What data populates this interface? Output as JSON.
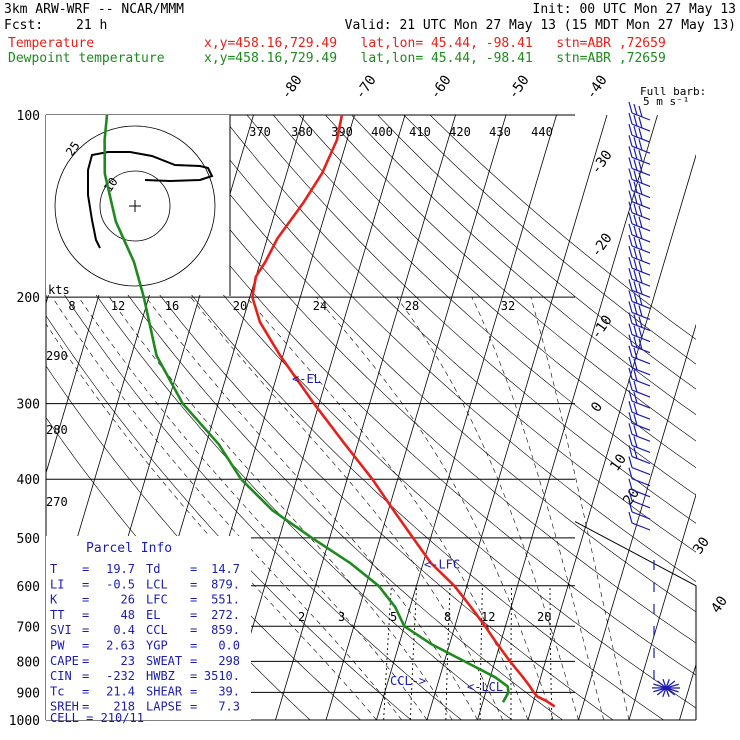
{
  "header": {
    "model": "3km ARW-WRF -- NCAR/MMM",
    "init": "Init: 00 UTC Mon 27 May 13",
    "fcst_label": "Fcst:",
    "fcst_value": "21 h",
    "valid": "Valid: 21 UTC Mon 27 May 13 (15 MDT Mon 27 May 13)",
    "temp_label": "Temperature",
    "temp_info": "x,y=458.16,729.49   lat,lon= 45.44, -98.41   stn=ABR ,72659",
    "dew_label": "Dewpoint temperature",
    "dew_info": "x,y=458.16,729.49   lat,lon= 45.44, -98.41   stn=ABR ,72659"
  },
  "colors": {
    "temperature": "#e8201a",
    "dewpoint": "#1e8a1e",
    "wind": "#1c1cb0",
    "grid": "#000000",
    "dry_adiabat": "#000000",
    "moist_adiabat": "#000000",
    "mixing_ratio": "#000000",
    "parcel_text": "#1c1cb0"
  },
  "wind_legend": {
    "title": "Full barb:",
    "value": "5 m s⁻¹"
  },
  "chart_data": {
    "type": "line",
    "title": "",
    "pressure_levels": [
      100,
      200,
      300,
      400,
      500,
      600,
      700,
      800,
      900,
      1000
    ],
    "pressure_labels": [
      "100",
      "200",
      "300",
      "400",
      "500",
      "600",
      "700",
      "800",
      "900",
      "1000"
    ],
    "isotherm_labels": [
      "-80",
      "-70",
      "-60",
      "-50",
      "-40",
      "-30",
      "-20",
      "-10",
      "0",
      "10",
      "20",
      "30",
      "40"
    ],
    "mixing_ratio_labels": [
      "2",
      "3",
      "5",
      "8",
      "12",
      "20"
    ],
    "theta_labels_left": [
      "290",
      "280",
      "270"
    ],
    "series": [
      {
        "name": "Temperature",
        "key": "temperature",
        "points": [
          [
            950,
            24.5
          ],
          [
            930,
            22.5
          ],
          [
            915,
            20.5
          ],
          [
            900,
            19.5
          ],
          [
            880,
            18.4
          ],
          [
            850,
            16.5
          ],
          [
            800,
            13.0
          ],
          [
            750,
            9.5
          ],
          [
            700,
            6.0
          ],
          [
            650,
            2.0
          ],
          [
            600,
            -2.5
          ],
          [
            550,
            -8.5
          ],
          [
            500,
            -13.5
          ],
          [
            450,
            -19.0
          ],
          [
            400,
            -25.0
          ],
          [
            350,
            -32.5
          ],
          [
            300,
            -41.0
          ],
          [
            250,
            -50.5
          ],
          [
            220,
            -56.5
          ],
          [
            200,
            -59.5
          ],
          [
            185,
            -60.0
          ],
          [
            175,
            -59.0
          ],
          [
            160,
            -58.0
          ],
          [
            140,
            -55.0
          ],
          [
            125,
            -53.0
          ],
          [
            110,
            -52.0
          ],
          [
            100,
            -52.5
          ]
        ]
      },
      {
        "name": "Dewpoint temperature",
        "key": "dewpoint",
        "points": [
          [
            935,
            14.0
          ],
          [
            900,
            14.5
          ],
          [
            880,
            14.0
          ],
          [
            850,
            11.0
          ],
          [
            800,
            4.0
          ],
          [
            750,
            -3.5
          ],
          [
            700,
            -10.0
          ],
          [
            650,
            -13.0
          ],
          [
            600,
            -17.5
          ],
          [
            550,
            -24.5
          ],
          [
            500,
            -33.5
          ],
          [
            450,
            -43.0
          ],
          [
            400,
            -51.0
          ],
          [
            350,
            -57.5
          ],
          [
            300,
            -67.0
          ],
          [
            250,
            -75.0
          ],
          [
            200,
            -81.0
          ],
          [
            175,
            -85.0
          ],
          [
            150,
            -91.0
          ],
          [
            125,
            -96.0
          ],
          [
            110,
            -98.0
          ],
          [
            100,
            -99.0
          ]
        ]
      }
    ],
    "annotations": [
      {
        "label": "<-EL",
        "p": 272
      },
      {
        "label": "<-LFC",
        "p": 551
      },
      {
        "label": "CCL->",
        "p": 859
      },
      {
        "label": "<-LCL",
        "p": 879
      }
    ],
    "hodograph": {
      "unit_label": "kts",
      "speed_labels": [
        "8",
        "12",
        "16",
        "20",
        "24",
        "28",
        "32"
      ],
      "ring_labels": [
        "25",
        "10"
      ],
      "theta_labels": [
        "370",
        "380",
        "390",
        "400",
        "410",
        "420",
        "430",
        "440"
      ]
    },
    "wind_barbs": {
      "count": 38,
      "direction_deg": 225,
      "note": "SW flow aloft, light near surface"
    }
  },
  "parcel_info": {
    "title": "Parcel Info",
    "rows": [
      {
        "k1": "T",
        "v1": "19.7",
        "k2": "Td",
        "v2": "14.7"
      },
      {
        "k1": "LI",
        "v1": "-0.5",
        "k2": "LCL",
        "v2": "879."
      },
      {
        "k1": "K",
        "v1": "26",
        "k2": "LFC",
        "v2": "551."
      },
      {
        "k1": "TT",
        "v1": "48",
        "k2": "EL",
        "v2": "272."
      },
      {
        "k1": "SVI",
        "v1": "0.4",
        "k2": "CCL",
        "v2": "859."
      },
      {
        "k1": "PW",
        "v1": "2.63",
        "k2": "YGP",
        "v2": "0.0"
      },
      {
        "k1": "CAPE",
        "v1": "23",
        "k2": "SWEAT",
        "v2": "298"
      },
      {
        "k1": "CIN",
        "v1": "-232",
        "k2": "HWBZ",
        "v2": "3510."
      },
      {
        "k1": "Tc",
        "v1": "21.4",
        "k2": "SHEAR",
        "v2": "39."
      },
      {
        "k1": "SREH",
        "v1": "218",
        "k2": "LAPSE",
        "v2": "7.3"
      }
    ],
    "cell": "CELL = 210/11"
  }
}
